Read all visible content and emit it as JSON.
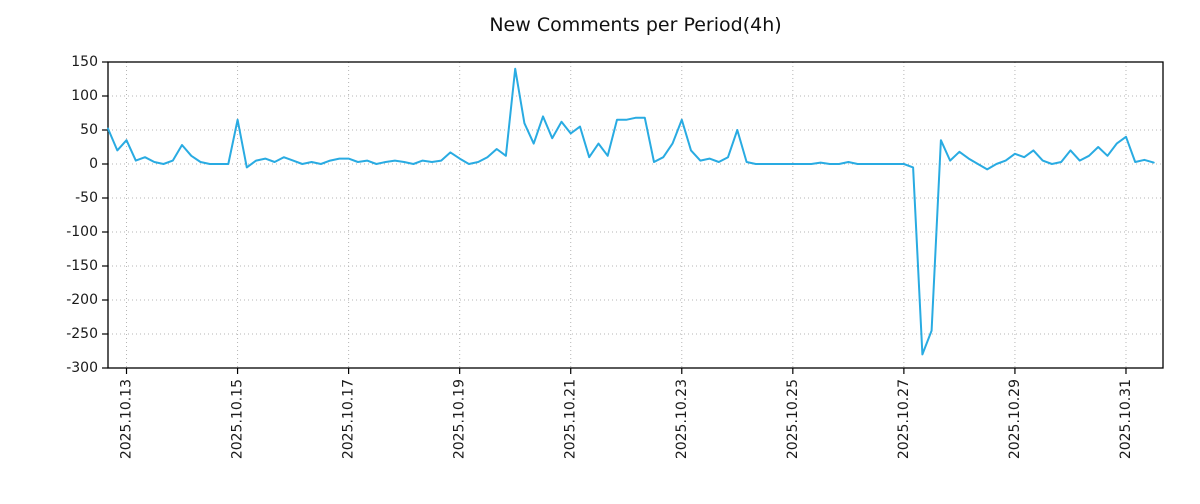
{
  "chart_data": {
    "type": "line",
    "title": "New Comments per Period(4h)",
    "line_color": "#29abe2",
    "grid_color": "#b5b5b5",
    "axis_color": "#000000",
    "ylim": [
      -300,
      150
    ],
    "yticks": [
      150,
      100,
      50,
      0,
      -50,
      -100,
      -150,
      -200,
      -250,
      -300
    ],
    "x_tick_labels": [
      "2025.10.13",
      "2025.10.15",
      "2025.10.17",
      "2025.10.19",
      "2025.10.21",
      "2025.10.23",
      "2025.10.25",
      "2025.10.27",
      "2025.10.29",
      "2025.10.31"
    ],
    "x_tick_indices": [
      2,
      14,
      26,
      38,
      50,
      62,
      74,
      86,
      98,
      110
    ],
    "x_total_periods": 114,
    "period_hours": 4,
    "values": [
      52,
      20,
      35,
      5,
      10,
      3,
      0,
      5,
      28,
      12,
      3,
      0,
      0,
      0,
      65,
      -5,
      5,
      8,
      3,
      10,
      5,
      0,
      3,
      0,
      5,
      8,
      8,
      3,
      5,
      0,
      3,
      5,
      3,
      0,
      5,
      3,
      5,
      17,
      8,
      0,
      3,
      10,
      22,
      12,
      140,
      60,
      30,
      70,
      38,
      62,
      45,
      55,
      10,
      30,
      12,
      65,
      65,
      68,
      68,
      3,
      10,
      30,
      65,
      20,
      5,
      8,
      3,
      10,
      50,
      3,
      0,
      0,
      0,
      0,
      0,
      0,
      0,
      2,
      0,
      0,
      3,
      0,
      0,
      0,
      0,
      0,
      0,
      -5,
      -280,
      -245,
      35,
      5,
      18,
      8,
      0,
      -8,
      0,
      5,
      15,
      10,
      20,
      5,
      0,
      3,
      20,
      5,
      12,
      25,
      12,
      30,
      40,
      3,
      6,
      2
    ]
  }
}
